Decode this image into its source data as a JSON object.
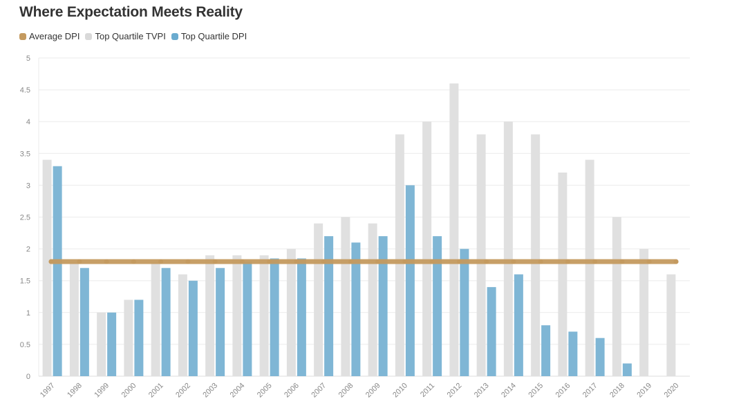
{
  "title": "Where Expectation Meets Reality",
  "legend": [
    {
      "label": "Average DPI",
      "color": "#c49a5f"
    },
    {
      "label": "Top Quartile TVPI",
      "color": "#d9d9d9"
    },
    {
      "label": "Top Quartile DPI",
      "color": "#6aabcf"
    }
  ],
  "chart_data": {
    "type": "bar",
    "title": "Where Expectation Meets Reality",
    "xlabel": "",
    "ylabel": "",
    "ylim": [
      0,
      5
    ],
    "yticks": [
      "0",
      "0.5",
      "1",
      "1.5",
      "2",
      "2.5",
      "3",
      "3.5",
      "4",
      "4.5",
      "5"
    ],
    "categories": [
      "1997",
      "1998",
      "1999",
      "2000",
      "2001",
      "2002",
      "2003",
      "2004",
      "2005",
      "2006",
      "2007",
      "2008",
      "2009",
      "2010",
      "2011",
      "2012",
      "2013",
      "2014",
      "2015",
      "2016",
      "2017",
      "2018",
      "2019",
      "2020"
    ],
    "series": [
      {
        "name": "Top Quartile TVPI",
        "type": "bar",
        "color": "#e0e0e0",
        "values": [
          3.4,
          1.8,
          1.0,
          1.2,
          1.8,
          1.6,
          1.9,
          1.9,
          1.9,
          2.0,
          2.4,
          2.5,
          2.4,
          3.8,
          4.0,
          4.6,
          3.8,
          4.0,
          3.8,
          3.2,
          3.4,
          2.5,
          2.0,
          1.6
        ]
      },
      {
        "name": "Top Quartile DPI",
        "type": "bar",
        "color": "#7fb6d5",
        "values": [
          3.3,
          1.7,
          1.0,
          1.2,
          1.7,
          1.5,
          1.7,
          1.8,
          1.85,
          1.85,
          2.2,
          2.1,
          2.2,
          3.0,
          2.2,
          2.0,
          1.4,
          1.6,
          0.8,
          0.7,
          0.6,
          0.2,
          null,
          null
        ]
      },
      {
        "name": "Average DPI",
        "type": "line",
        "color": "#c49a5f",
        "values": [
          1.8,
          1.8,
          1.8,
          1.8,
          1.8,
          1.8,
          1.8,
          1.8,
          1.8,
          1.8,
          1.8,
          1.8,
          1.8,
          1.8,
          1.8,
          1.8,
          1.8,
          1.8,
          1.8,
          1.8,
          1.8,
          1.8,
          1.8,
          1.8
        ]
      }
    ],
    "grid": true,
    "legend_position": "top-left"
  }
}
